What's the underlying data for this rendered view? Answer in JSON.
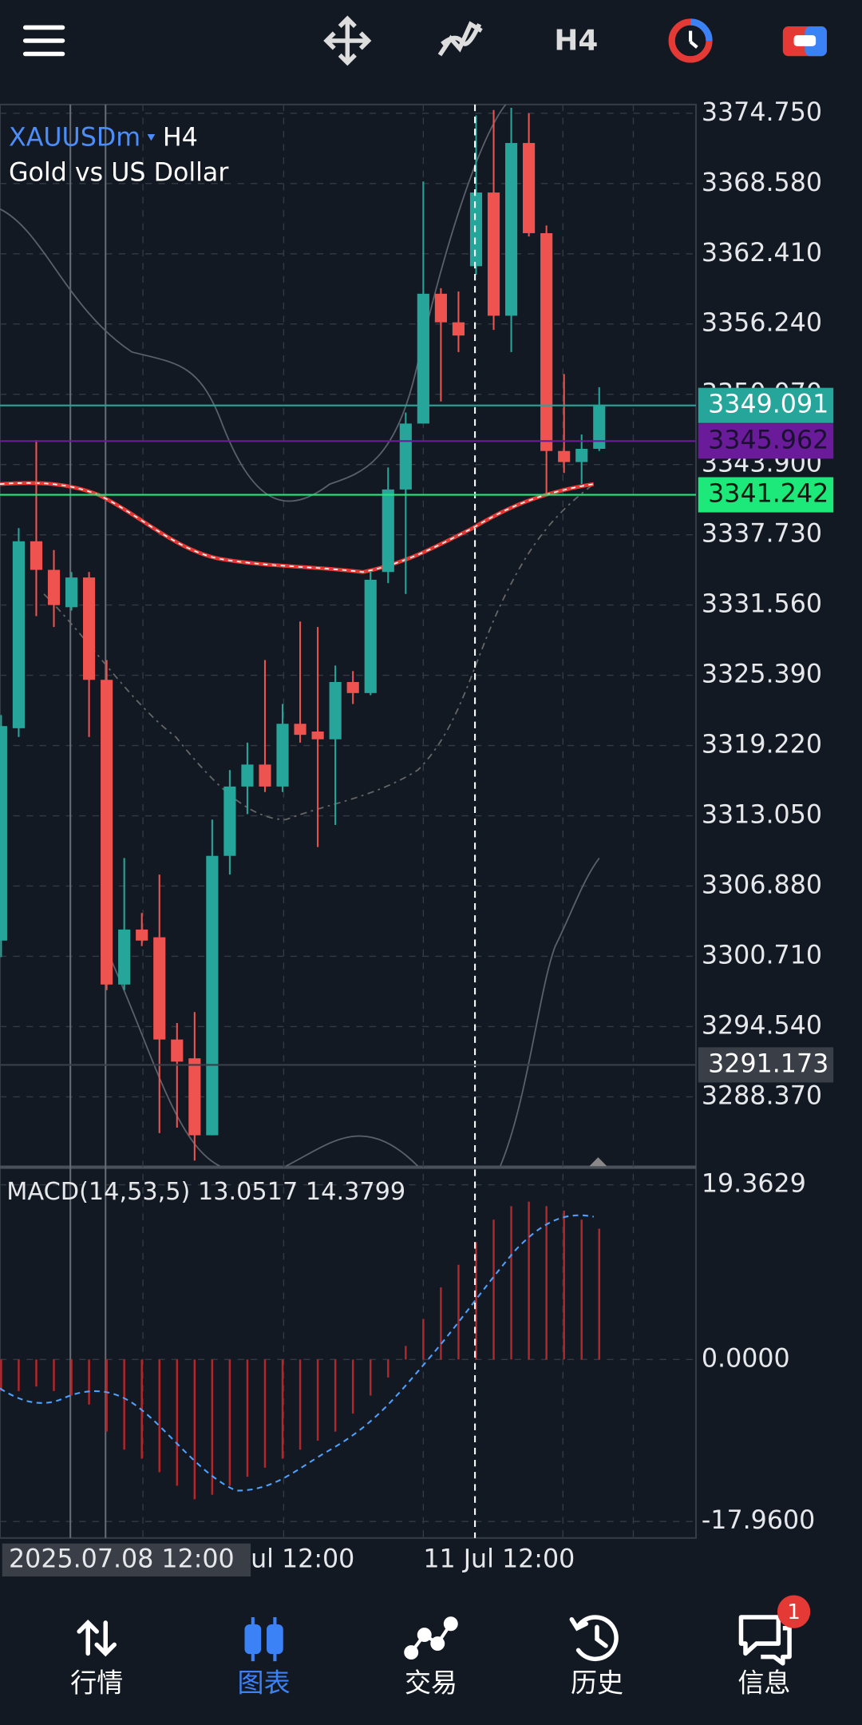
{
  "toolbar": {
    "timeframe": "H4"
  },
  "chart_data": {
    "type": "candlestick",
    "symbol": "XAUUSDm",
    "timeframe": "H4",
    "description": "Gold vs US Dollar",
    "up_color": "#26a69a",
    "down_color": "#ef5350",
    "open": [
      3302.09,
      3320.74,
      3337.16,
      3334.65,
      3331.37,
      3333.98,
      3324.99,
      3298.23,
      3303.06,
      3302.38,
      3293.4,
      3291.75,
      3284.99,
      3309.53,
      3315.62,
      3317.55,
      3315.62,
      3321.13,
      3320.45,
      3319.77,
      3324.8,
      3323.83,
      3334.46,
      3341.71,
      3347.5,
      3358.9,
      3356.39,
      3361.32,
      3367.79,
      3356.97,
      3372.14,
      3364.22,
      3345.09,
      3344.12,
      3345.28
    ],
    "high": [
      3321.9,
      3338.32,
      3346.05,
      3336.39,
      3334.46,
      3334.46,
      3326.73,
      3309.34,
      3304.51,
      3307.89,
      3294.85,
      3295.81,
      3312.72,
      3317.07,
      3319.48,
      3326.73,
      3322.87,
      3330.11,
      3329.63,
      3326.25,
      3325.76,
      3334.46,
      3343.64,
      3348.47,
      3368.76,
      3359.39,
      3359.1,
      3374.56,
      3375.04,
      3375.23,
      3374.75,
      3364.89,
      3351.85,
      3346.54,
      3350.69
    ],
    "low": [
      3300.64,
      3319.97,
      3330.59,
      3329.63,
      3331.08,
      3319.97,
      3297.74,
      3297.74,
      3301.61,
      3285.18,
      3285.66,
      3282.77,
      3284.99,
      3307.89,
      3313.2,
      3315.14,
      3315.14,
      3319.48,
      3310.31,
      3312.24,
      3322.87,
      3323.64,
      3333.49,
      3332.53,
      3347.5,
      3349.44,
      3353.78,
      3360.55,
      3355.72,
      3353.78,
      3363.93,
      3341.22,
      3343.16,
      3342.19,
      3345.09
    ],
    "close": [
      3320.93,
      3337.16,
      3334.65,
      3331.56,
      3333.98,
      3324.99,
      3298.23,
      3303.06,
      3302.09,
      3293.4,
      3291.46,
      3284.99,
      3309.53,
      3315.62,
      3317.55,
      3315.62,
      3321.13,
      3320.16,
      3319.77,
      3324.8,
      3323.83,
      3333.78,
      3341.71,
      3347.5,
      3358.9,
      3356.39,
      3355.23,
      3367.79,
      3356.97,
      3372.14,
      3364.22,
      3345.09,
      3344.12,
      3345.28,
      3349.15
    ],
    "ylim": [
      3282.28,
      3375.52
    ],
    "yticks": [
      {
        "value": 3374.75,
        "label": "3374.750"
      },
      {
        "value": 3368.58,
        "label": "3368.580"
      },
      {
        "value": 3362.41,
        "label": "3362.410"
      },
      {
        "value": 3356.24,
        "label": "3356.240"
      },
      {
        "value": 3350.07,
        "label": "3350.070"
      },
      {
        "value": 3343.9,
        "label": "3343.900"
      },
      {
        "value": 3337.73,
        "label": "3337.730"
      },
      {
        "value": 3331.56,
        "label": "3331.560"
      },
      {
        "value": 3325.39,
        "label": "3325.390"
      },
      {
        "value": 3319.22,
        "label": "3319.220"
      },
      {
        "value": 3313.05,
        "label": "3313.050"
      },
      {
        "value": 3306.88,
        "label": "3306.880"
      },
      {
        "value": 3300.71,
        "label": "3300.710"
      },
      {
        "value": 3294.54,
        "label": "3294.540"
      },
      {
        "value": 3288.37,
        "label": "3288.370"
      }
    ],
    "grid": true,
    "price_lines": [
      {
        "value": 3349.091,
        "color": "#26a69a",
        "text_color": "#ffffff"
      },
      {
        "value": 3345.962,
        "color": "#6a1b9a",
        "text_color": "#1a1030"
      },
      {
        "value": 3341.242,
        "color": "#1de97a",
        "text_color": "#0b1a10"
      },
      {
        "value": 3291.173,
        "color": "#3a3f47",
        "text_color": "#ffffff"
      }
    ],
    "time_labels": [
      "2025.07.08 12:00",
      "ul 12:00",
      "11 Jul 12:00"
    ]
  },
  "macd": {
    "type": "bar",
    "label": "MACD(14,53,5) 13.0517 14.3799",
    "color": "#b3262a",
    "values": [
      -3.5,
      -3.5,
      -3,
      -3.5,
      -4,
      -5,
      -8,
      -10,
      -11,
      -12.5,
      -14,
      -15.5,
      -15,
      -14,
      -13,
      -12,
      -11,
      -10,
      -9,
      -8,
      -6,
      -4,
      -2,
      1.5,
      4.5,
      8,
      10.5,
      13,
      15.5,
      17,
      17.5,
      17,
      16.5,
      15.5,
      14.5
    ],
    "ylim": [
      -19.79,
      21.19
    ],
    "yticks": [
      {
        "value": 19.3629,
        "label": "19.3629"
      },
      {
        "value": 0,
        "label": "0.0000"
      },
      {
        "value": -17.96,
        "label": "-17.9600"
      }
    ]
  },
  "nav": {
    "items": [
      "行情",
      "图表",
      "交易",
      "历史",
      "信息"
    ],
    "badge": "1"
  }
}
